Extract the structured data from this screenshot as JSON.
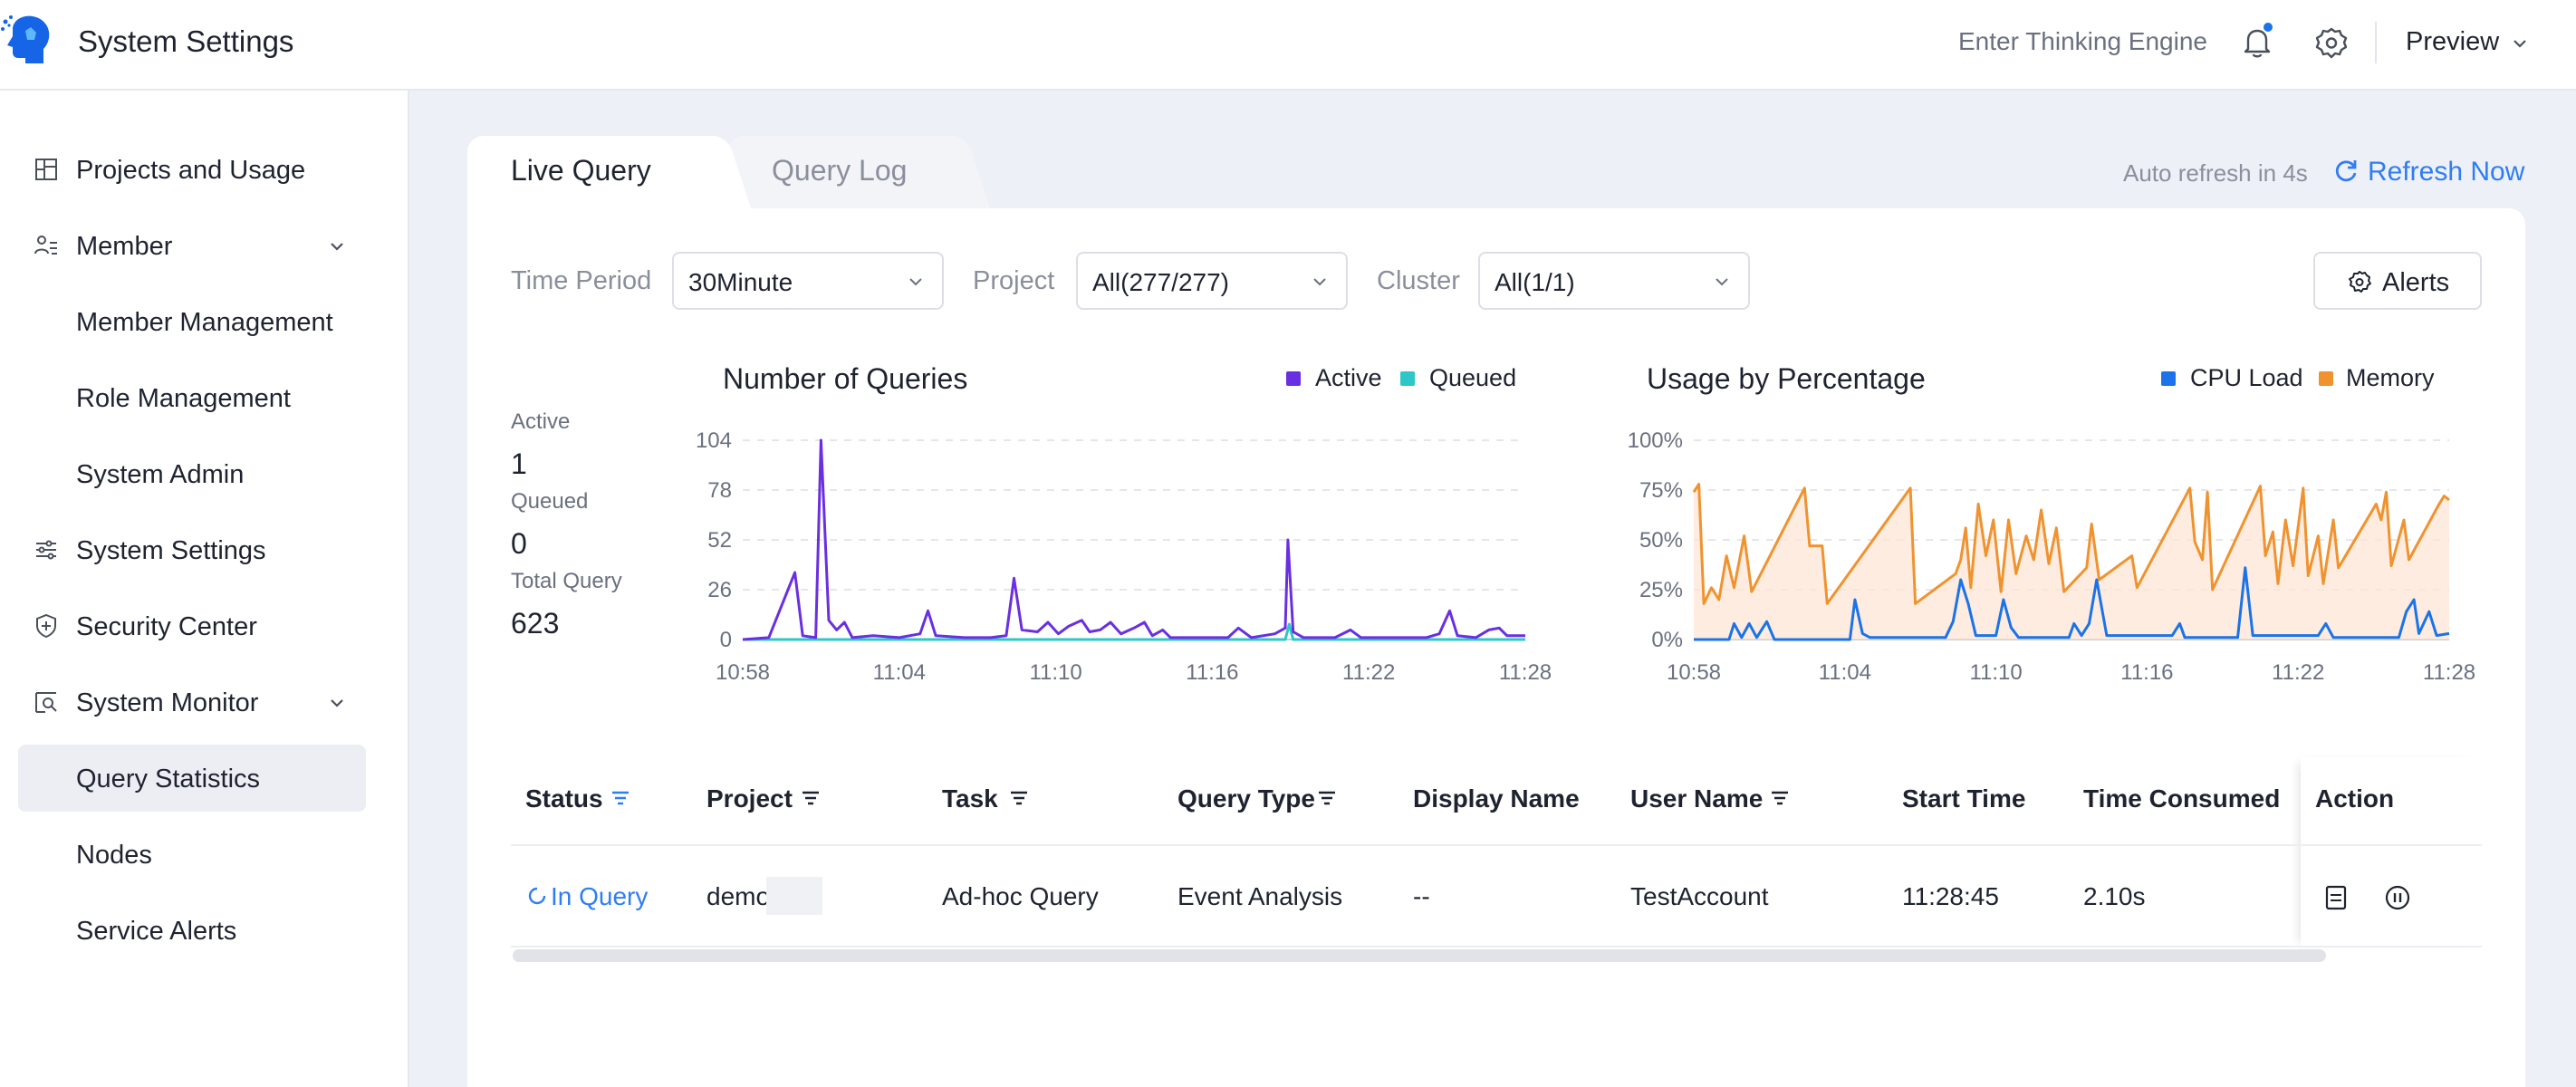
{
  "header": {
    "title": "System Settings",
    "enter_link": "Enter Thinking Engine",
    "user_menu": "Preview",
    "brand_color": "#1565e6"
  },
  "sidebar": {
    "items": [
      {
        "label": "Projects and Usage",
        "icon": "layout-icon"
      },
      {
        "label": "Member",
        "icon": "users-icon",
        "expanded": true
      },
      {
        "label": "Member Management"
      },
      {
        "label": "Role Management"
      },
      {
        "label": "System Admin"
      },
      {
        "label": "System Settings",
        "icon": "sliders-icon"
      },
      {
        "label": "Security Center",
        "icon": "shield-icon"
      },
      {
        "label": "System Monitor",
        "icon": "monitor-search-icon",
        "expanded": true
      },
      {
        "label": "Query Statistics",
        "active": true
      },
      {
        "label": "Nodes"
      },
      {
        "label": "Service Alerts"
      }
    ]
  },
  "tabs": [
    {
      "label": "Live Query",
      "active": true
    },
    {
      "label": "Query Log",
      "active": false
    }
  ],
  "refresh": {
    "auto_text": "Auto refresh in 4s",
    "button_label": "Refresh Now"
  },
  "filters": {
    "time_period": {
      "label": "Time Period",
      "value": "30Minute"
    },
    "project": {
      "label": "Project",
      "value": "All(277/277)"
    },
    "cluster": {
      "label": "Cluster",
      "value": "All(1/1)"
    },
    "alerts_label": "Alerts"
  },
  "stats": {
    "active_label": "Active",
    "active_value": "1",
    "queued_label": "Queued",
    "queued_value": "0",
    "total_label": "Total Query",
    "total_value": "623"
  },
  "chart_data": [
    {
      "type": "line",
      "title": "Number of Queries",
      "x_ticks": [
        "10:58",
        "11:04",
        "11:10",
        "11:16",
        "11:22",
        "11:28"
      ],
      "y_ticks": [
        "0",
        "26",
        "52",
        "78",
        "104"
      ],
      "ylim": [
        0,
        104
      ],
      "xlim_minutes": [
        0,
        30
      ],
      "legend_position": "top-right",
      "grid": true,
      "series": [
        {
          "name": "Active",
          "color": "#6a2fe0",
          "points": [
            [
              0,
              0
            ],
            [
              1.0,
              1
            ],
            [
              2.0,
              35
            ],
            [
              2.3,
              2
            ],
            [
              2.8,
              1
            ],
            [
              3.0,
              104
            ],
            [
              3.3,
              10
            ],
            [
              3.6,
              5
            ],
            [
              3.9,
              9
            ],
            [
              4.2,
              1
            ],
            [
              5.0,
              2
            ],
            [
              6.0,
              1
            ],
            [
              6.8,
              3
            ],
            [
              7.1,
              15
            ],
            [
              7.4,
              2
            ],
            [
              8.5,
              1
            ],
            [
              9.5,
              1
            ],
            [
              10.1,
              2
            ],
            [
              10.4,
              32
            ],
            [
              10.7,
              5
            ],
            [
              11.3,
              4
            ],
            [
              11.7,
              9
            ],
            [
              12.1,
              3
            ],
            [
              12.5,
              7
            ],
            [
              13.0,
              10
            ],
            [
              13.3,
              4
            ],
            [
              13.7,
              5
            ],
            [
              14.1,
              9
            ],
            [
              14.5,
              3
            ],
            [
              15.0,
              6
            ],
            [
              15.4,
              9
            ],
            [
              15.7,
              2
            ],
            [
              16.1,
              5
            ],
            [
              16.4,
              1
            ],
            [
              17.5,
              1
            ],
            [
              18.6,
              1
            ],
            [
              19.0,
              6
            ],
            [
              19.5,
              1
            ],
            [
              20.4,
              3
            ],
            [
              20.8,
              6
            ],
            [
              20.9,
              52
            ],
            [
              21.1,
              4
            ],
            [
              21.5,
              1
            ],
            [
              22.7,
              1
            ],
            [
              23.3,
              5
            ],
            [
              23.7,
              1
            ],
            [
              25.0,
              1
            ],
            [
              26.2,
              1
            ],
            [
              26.7,
              3
            ],
            [
              27.1,
              15
            ],
            [
              27.4,
              2
            ],
            [
              28.1,
              1
            ],
            [
              28.6,
              5
            ],
            [
              29.0,
              6
            ],
            [
              29.3,
              2
            ],
            [
              30,
              2
            ]
          ]
        },
        {
          "name": "Queued",
          "color": "#2ec7c9",
          "points": [
            [
              0,
              0
            ],
            [
              20.8,
              0
            ],
            [
              20.95,
              8
            ],
            [
              21.1,
              0
            ],
            [
              30,
              0
            ]
          ]
        }
      ]
    },
    {
      "type": "area",
      "title": "Usage by Percentage",
      "x_ticks": [
        "10:58",
        "11:04",
        "11:10",
        "11:16",
        "11:22",
        "11:28"
      ],
      "y_ticks": [
        "0%",
        "25%",
        "50%",
        "75%",
        "100%"
      ],
      "ylim": [
        0,
        100
      ],
      "xlim_minutes": [
        0,
        30
      ],
      "legend_position": "top-right",
      "grid": true,
      "series": [
        {
          "name": "CPU Load",
          "color": "#1a73e8",
          "points": [
            [
              0,
              0
            ],
            [
              1.4,
              0
            ],
            [
              1.6,
              8
            ],
            [
              1.9,
              1
            ],
            [
              2.2,
              8
            ],
            [
              2.5,
              1
            ],
            [
              2.9,
              9
            ],
            [
              3.2,
              0
            ],
            [
              6.2,
              0
            ],
            [
              6.4,
              20
            ],
            [
              6.7,
              3
            ],
            [
              7.0,
              1
            ],
            [
              10.0,
              1
            ],
            [
              10.3,
              9
            ],
            [
              10.6,
              30
            ],
            [
              10.9,
              18
            ],
            [
              11.2,
              2
            ],
            [
              12.0,
              2
            ],
            [
              12.3,
              20
            ],
            [
              12.6,
              6
            ],
            [
              12.9,
              1
            ],
            [
              14.9,
              1
            ],
            [
              15.1,
              8
            ],
            [
              15.4,
              2
            ],
            [
              15.7,
              8
            ],
            [
              16.0,
              30
            ],
            [
              16.4,
              2
            ],
            [
              19.0,
              2
            ],
            [
              19.3,
              8
            ],
            [
              19.5,
              1
            ],
            [
              21.6,
              1
            ],
            [
              21.9,
              36
            ],
            [
              22.2,
              2
            ],
            [
              24.8,
              2
            ],
            [
              25.1,
              8
            ],
            [
              25.4,
              1
            ],
            [
              28.0,
              1
            ],
            [
              28.3,
              14
            ],
            [
              28.6,
              20
            ],
            [
              28.8,
              3
            ],
            [
              29.2,
              14
            ],
            [
              29.5,
              2
            ],
            [
              30,
              3
            ]
          ]
        },
        {
          "name": "Memory",
          "color": "#f0932f",
          "fill": "#fde6d6",
          "points": [
            [
              0,
              74
            ],
            [
              0.2,
              78
            ],
            [
              0.4,
              18
            ],
            [
              0.7,
              26
            ],
            [
              1.0,
              20
            ],
            [
              1.3,
              42
            ],
            [
              1.6,
              26
            ],
            [
              2.0,
              52
            ],
            [
              2.3,
              24
            ],
            [
              4.4,
              76
            ],
            [
              4.6,
              47
            ],
            [
              5.1,
              47
            ],
            [
              5.3,
              18
            ],
            [
              8.6,
              76
            ],
            [
              8.8,
              18
            ],
            [
              10.4,
              33
            ],
            [
              10.6,
              40
            ],
            [
              10.8,
              56
            ],
            [
              11.0,
              26
            ],
            [
              11.3,
              68
            ],
            [
              11.6,
              42
            ],
            [
              11.9,
              60
            ],
            [
              12.2,
              24
            ],
            [
              12.5,
              60
            ],
            [
              12.8,
              33
            ],
            [
              13.2,
              52
            ],
            [
              13.5,
              40
            ],
            [
              13.8,
              65
            ],
            [
              14.1,
              38
            ],
            [
              14.4,
              56
            ],
            [
              14.7,
              24
            ],
            [
              15.6,
              36
            ],
            [
              15.8,
              58
            ],
            [
              16.1,
              30
            ],
            [
              17.4,
              42
            ],
            [
              17.6,
              26
            ],
            [
              19.7,
              76
            ],
            [
              19.9,
              49
            ],
            [
              20.2,
              40
            ],
            [
              20.4,
              74
            ],
            [
              20.6,
              25
            ],
            [
              22.5,
              77
            ],
            [
              22.7,
              42
            ],
            [
              23.0,
              54
            ],
            [
              23.2,
              28
            ],
            [
              23.5,
              60
            ],
            [
              23.8,
              37
            ],
            [
              24.2,
              76
            ],
            [
              24.4,
              32
            ],
            [
              24.8,
              52
            ],
            [
              25.0,
              28
            ],
            [
              25.4,
              60
            ],
            [
              25.6,
              36
            ],
            [
              27.1,
              68
            ],
            [
              27.3,
              60
            ],
            [
              27.5,
              74
            ],
            [
              27.7,
              37
            ],
            [
              28.2,
              60
            ],
            [
              28.4,
              40
            ],
            [
              29.6,
              68
            ],
            [
              29.8,
              72
            ],
            [
              30,
              70
            ]
          ]
        }
      ]
    }
  ],
  "table": {
    "columns": [
      "Status",
      "Project",
      "Task",
      "Query Type",
      "Display Name",
      "User Name",
      "Start Time",
      "Time Consumed",
      "Action"
    ],
    "rows": [
      {
        "status": "In Query",
        "project": "demo",
        "task": "Ad-hoc Query",
        "query_type": "Event Analysis",
        "display_name": "--",
        "user_name": "TestAccount",
        "start_time": "11:28:45",
        "time_consumed": "2.10s"
      }
    ]
  }
}
